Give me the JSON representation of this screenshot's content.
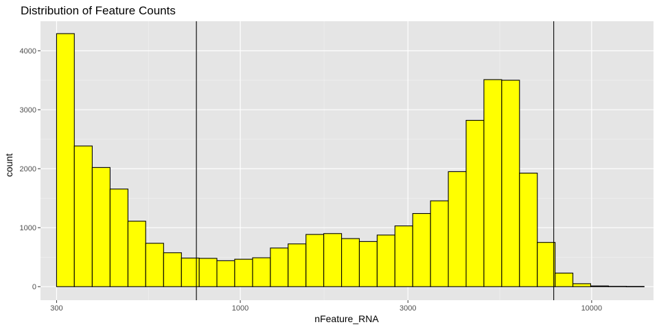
{
  "chart_data": {
    "type": "bar",
    "title": "Distribution of Feature Counts",
    "xlabel": "nFeature_RNA",
    "ylabel": "count",
    "x_scale": "log10",
    "xlim": [
      270,
      15000
    ],
    "ylim": [
      -230,
      4500
    ],
    "x_ticks": [
      {
        "value": 300,
        "label": "300"
      },
      {
        "value": 1000,
        "label": "1000"
      },
      {
        "value": 3000,
        "label": "3000"
      },
      {
        "value": 10000,
        "label": "10000"
      }
    ],
    "x_minor_gridlines": [
      548,
      1732,
      5477
    ],
    "y_ticks": [
      {
        "value": 0,
        "label": "0"
      },
      {
        "value": 1000,
        "label": "1000"
      },
      {
        "value": 2000,
        "label": "2000"
      },
      {
        "value": 3000,
        "label": "3000"
      },
      {
        "value": 4000,
        "label": "4000"
      }
    ],
    "y_minor_gridlines": [
      500,
      1500,
      2500,
      3500
    ],
    "bin_edges": [
      300,
      337,
      379,
      426,
      479,
      538,
      605,
      680,
      764,
      858,
      964,
      1084,
      1218,
      1368,
      1538,
      1728,
      1942,
      2182,
      2452,
      2755,
      3096,
      3479,
      3909,
      4393,
      4936,
      5547,
      6233,
      7004,
      7871,
      8844,
      9938,
      11167,
      12549,
      14101
    ],
    "values": [
      4290,
      2385,
      2020,
      1655,
      1110,
      735,
      575,
      485,
      480,
      440,
      465,
      490,
      655,
      725,
      885,
      900,
      815,
      765,
      875,
      1030,
      1240,
      1455,
      1950,
      2820,
      3510,
      3500,
      1925,
      750,
      230,
      50,
      12,
      5,
      3
    ],
    "vlines": [
      750,
      7800
    ],
    "bar_fill": "#ffff00",
    "bar_stroke": "#000000",
    "panel_background": "#e5e5e5",
    "grid": true
  }
}
